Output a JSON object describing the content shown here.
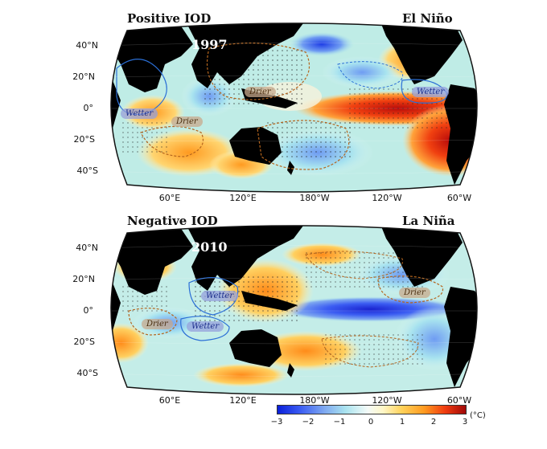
{
  "panels": [
    {
      "left_label": "Positive IOD",
      "right_label": "El Niño",
      "year": "1997",
      "wetter_tags": [
        "Wetter",
        "Wetter"
      ],
      "drier_tags": [
        "Drier",
        "Drier"
      ]
    },
    {
      "left_label": "Negative IOD",
      "right_label": "La Niña",
      "year": "2010",
      "wetter_tags": [
        "Wetter",
        "Wetter"
      ],
      "drier_tags": [
        "Drier",
        "Drier"
      ]
    }
  ],
  "lat_labels": [
    "40°N",
    "20°N",
    "0°",
    "20°S",
    "40°S"
  ],
  "lon_labels": [
    "60°E",
    "120°E",
    "180°W",
    "120°W",
    "60°W"
  ],
  "colorbar": {
    "ticks": [
      "−3",
      "−2",
      "−1",
      "0",
      "1",
      "2",
      "3"
    ],
    "unit": "(°C)",
    "min": -3,
    "max": 3
  },
  "colors": {
    "land": "#000000",
    "warm": "#e8261a",
    "cool": "#2d3fe0",
    "wetter_contour": "#2b6fd6",
    "drier_contour": "#b5651d"
  }
}
